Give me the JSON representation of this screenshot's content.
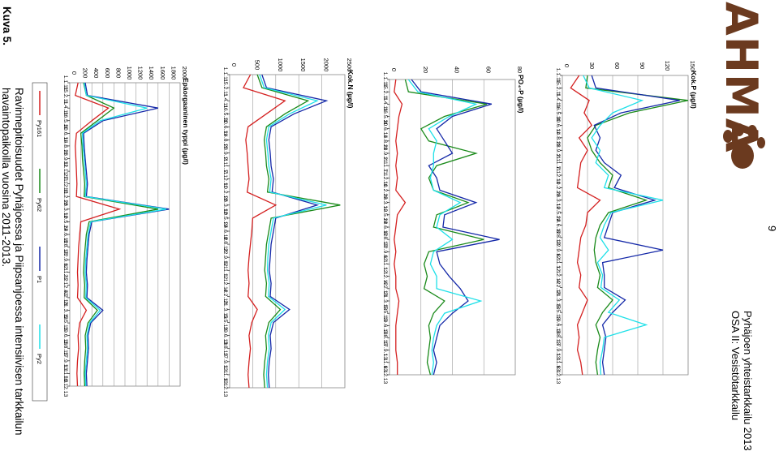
{
  "page_number": "9",
  "header": {
    "line1": "Pyhäjoen yhteistarkkailu 2013",
    "line2": "OSA II: Vesistötarkkailu"
  },
  "logo": {
    "text": "AHMA"
  },
  "caption": {
    "label": "Kuva 5.",
    "line1": "Ravinnepitoisuudet Pyhäjoessa ja Piipsanjoessa intensiivisen tarkkailun",
    "line2": "havaintopaikoilla vuosina 2011-2013."
  },
  "legend": [
    {
      "name": "Py161",
      "color": "#d42020"
    },
    {
      "name": "Py62",
      "color": "#1a8a1a"
    },
    {
      "name": "P1",
      "color": "#1428a8"
    },
    {
      "name": "Py2",
      "color": "#1ee0e8"
    }
  ],
  "dates": [
    "1.1.11",
    "15.2.11",
    "1.4.11",
    "16.5.11",
    "30.6.11",
    "14.8.11",
    "28.9.11",
    "12.11.11",
    "27.12.11",
    "10.2.12",
    "26.3.12",
    "10.5.12",
    "24.6.12",
    "8.8.12",
    "22.9.12",
    "6.11.12",
    "21.12.12",
    "4.2.13",
    "21.3.13",
    "5.5.13",
    "19.6.13",
    "3.8.13",
    "17.9.13",
    "1.11.13",
    "16.12.13"
  ],
  "chart_data": [
    {
      "type": "line",
      "title": "Kok.P (µg/l)",
      "ylim": [
        0,
        150
      ],
      "yticks": [
        0,
        30,
        60,
        90,
        120,
        150
      ],
      "x": [
        "1.1.11",
        "15.2.11",
        "1.4.11",
        "16.5.11",
        "30.6.11",
        "14.8.11",
        "28.9.11",
        "2.11.11",
        "7.12.11",
        "10.2.12",
        "26.3.12",
        "10.5.12",
        "24.6.12",
        "8.8.12",
        "22.9.12",
        "6.11.12",
        "1.12.12",
        "4.2.13",
        "21.3.13",
        "5.5.13",
        "19.6.13",
        "3.8.13",
        "17.9.13",
        "1.11.13",
        "6.12.13"
      ],
      "series": [
        {
          "name": "Py161",
          "values": [
            20,
            10,
            32,
            26,
            35,
            20,
            30,
            22,
            20,
            18,
            45,
            30,
            28,
            22,
            20,
            18,
            22,
            20,
            30,
            24,
            18,
            20,
            18,
            22,
            24
          ]
        },
        {
          "name": "Py62",
          "values": [
            30,
            28,
            150,
            80,
            40,
            30,
            35,
            45,
            60,
            55,
            100,
            55,
            45,
            40,
            38,
            40,
            45,
            42,
            60,
            48,
            40,
            45,
            42,
            40,
            42
          ]
        },
        {
          "name": "P1",
          "values": [
            35,
            40,
            140,
            70,
            38,
            45,
            40,
            50,
            70,
            62,
            110,
            60,
            55,
            50,
            120,
            48,
            50,
            50,
            75,
            60,
            48,
            52,
            50,
            48,
            50
          ]
        },
        {
          "name": "Py2",
          "values": [
            25,
            32,
            95,
            60,
            45,
            35,
            45,
            40,
            55,
            50,
            120,
            58,
            50,
            45,
            55,
            42,
            48,
            46,
            68,
            55,
            100,
            50,
            48,
            45,
            46
          ]
        }
      ]
    },
    {
      "type": "line",
      "title": "PO₄-P (µg/l)",
      "ylim": [
        0,
        80
      ],
      "yticks": [
        0,
        20,
        40,
        60,
        80
      ],
      "x": [
        "1.1.11",
        "15.2.11",
        "1.4.11",
        "16.5.11",
        "30.6.11",
        "14.8.11",
        "28.9.11",
        "2.11.11",
        "7.12.11",
        "10.2.12",
        "26.3.12",
        "10.5.12",
        "24.6.12",
        "8.8.12",
        "22.9.12",
        "6.11.12",
        "1.12.12",
        "4.2.13",
        "21.3.13",
        "5.5.13",
        "19.6.13",
        "3.8.13",
        "17.9.13",
        "1.11.13",
        "6.12.13"
      ],
      "series": [
        {
          "name": "Py161",
          "values": [
            4,
            3,
            8,
            6,
            5,
            4,
            5,
            4,
            5,
            4,
            10,
            5,
            4,
            3,
            4,
            3,
            4,
            4,
            6,
            5,
            4,
            4,
            4,
            5,
            5
          ]
        },
        {
          "name": "Py62",
          "values": [
            10,
            12,
            62,
            35,
            20,
            25,
            55,
            30,
            25,
            28,
            50,
            30,
            28,
            60,
            25,
            22,
            24,
            22,
            35,
            28,
            25,
            26,
            25,
            24,
            26
          ]
        },
        {
          "name": "P1",
          "values": [
            14,
            20,
            65,
            40,
            30,
            35,
            40,
            25,
            30,
            32,
            55,
            35,
            34,
            70,
            30,
            32,
            38,
            45,
            50,
            40,
            32,
            30,
            28,
            30,
            28
          ]
        },
        {
          "name": "Py2",
          "values": [
            12,
            18,
            55,
            38,
            25,
            30,
            28,
            28,
            26,
            28,
            45,
            32,
            30,
            40,
            28,
            26,
            30,
            30,
            58,
            35,
            30,
            28,
            27,
            28,
            27
          ]
        }
      ]
    },
    {
      "type": "line",
      "title": "Kok.N (µg/l)",
      "ylim": [
        0,
        2500
      ],
      "yticks": [
        0,
        500,
        1000,
        1500,
        2000,
        2500
      ],
      "x": [
        "1.1.11",
        "15.2.11",
        "1.4.11",
        "16.5.11",
        "30.6.11",
        "14.8.11",
        "28.9.11",
        "2.11.11",
        "7.12.11",
        "10.2.12",
        "26.3.12",
        "10.5.12",
        "24.6.12",
        "8.8.12",
        "22.9.12",
        "6.11.12",
        "1.12.12",
        "4.2.13",
        "21.3.13",
        "5.5.13",
        "19.6.13",
        "3.8.13",
        "17.9.13",
        "1.11.13",
        "6.12.13"
      ],
      "series": [
        {
          "name": "Py161",
          "values": [
            450,
            300,
            1200,
            800,
            400,
            350,
            380,
            400,
            420,
            380,
            1000,
            500,
            480,
            450,
            420,
            400,
            420,
            400,
            600,
            480,
            420,
            450,
            420,
            400,
            420
          ]
        },
        {
          "name": "Py62",
          "values": [
            600,
            700,
            1700,
            1200,
            800,
            750,
            780,
            800,
            850,
            820,
            2400,
            900,
            850,
            800,
            780,
            760,
            800,
            780,
            1100,
            850,
            780,
            800,
            760,
            740,
            760
          ]
        },
        {
          "name": "P1",
          "values": [
            700,
            800,
            2100,
            1400,
            900,
            850,
            880,
            900,
            950,
            920,
            1900,
            1000,
            950,
            900,
            880,
            860,
            900,
            880,
            1300,
            950,
            880,
            900,
            860,
            840,
            860
          ]
        },
        {
          "name": "Py2",
          "values": [
            650,
            750,
            1900,
            1300,
            850,
            800,
            830,
            850,
            900,
            870,
            2100,
            950,
            900,
            850,
            830,
            820,
            860,
            840,
            1200,
            900,
            840,
            860,
            820,
            800,
            820
          ]
        }
      ]
    },
    {
      "type": "line",
      "title": "Epäorgaaninen typpi (µg/l)",
      "ylim": [
        0,
        2000
      ],
      "yticks": [
        0,
        200,
        400,
        600,
        800,
        1000,
        1200,
        1400,
        1600,
        1800,
        2000
      ],
      "x": [
        "1.1.11",
        "15.2.11",
        "1.4.11",
        "16.5.11",
        "30.6.11",
        "14.8.11",
        "28.9.11",
        "12.11.11",
        "27.12.11",
        "10.2.12",
        "26.3.12",
        "10.5.12",
        "24.6.12",
        "8.8.12",
        "22.9.12",
        "6.11.12",
        "21.12.12",
        "4.2.13",
        "21.3.13",
        "5.5.13",
        "19.6.13",
        "3.8.13",
        "17.9.13",
        "1.11.13",
        "16.12.13"
      ],
      "series": [
        {
          "name": "Py161",
          "values": [
            150,
            100,
            700,
            400,
            120,
            100,
            110,
            120,
            130,
            120,
            900,
            200,
            180,
            160,
            150,
            140,
            150,
            140,
            300,
            180,
            150,
            160,
            140,
            130,
            140
          ]
        },
        {
          "name": "Py62",
          "values": [
            250,
            300,
            800,
            500,
            200,
            220,
            230,
            250,
            270,
            260,
            1600,
            350,
            300,
            280,
            260,
            250,
            270,
            260,
            500,
            330,
            280,
            290,
            270,
            260,
            270
          ]
        },
        {
          "name": "P1",
          "values": [
            280,
            320,
            1600,
            600,
            250,
            260,
            280,
            300,
            320,
            300,
            1800,
            400,
            350,
            330,
            310,
            300,
            320,
            310,
            600,
            380,
            330,
            340,
            320,
            300,
            310
          ]
        },
        {
          "name": "Py2",
          "values": [
            260,
            300,
            1400,
            550,
            230,
            240,
            260,
            280,
            300,
            280,
            1750,
            380,
            330,
            310,
            290,
            280,
            300,
            290,
            550,
            360,
            310,
            320,
            300,
            280,
            290
          ]
        }
      ]
    }
  ]
}
